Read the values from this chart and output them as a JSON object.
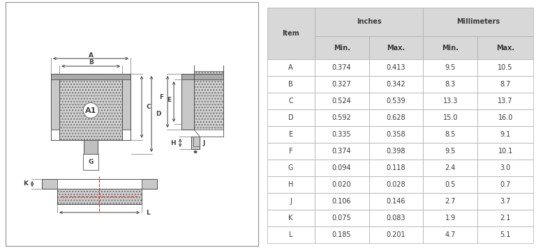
{
  "table_rows": [
    [
      "A",
      "0.374",
      "0.413",
      "9.5",
      "10.5"
    ],
    [
      "B",
      "0.327",
      "0.342",
      "8.3",
      "8.7"
    ],
    [
      "C",
      "0.524",
      "0.539",
      "13.3",
      "13.7"
    ],
    [
      "D",
      "0.592",
      "0.628",
      "15.0",
      "16.0"
    ],
    [
      "E",
      "0.335",
      "0.358",
      "8.5",
      "9.1"
    ],
    [
      "F",
      "0.374",
      "0.398",
      "9.5",
      "10.1"
    ],
    [
      "G",
      "0.094",
      "0.118",
      "2.4",
      "3.0"
    ],
    [
      "H",
      "0.020",
      "0.028",
      "0.5",
      "0.7"
    ],
    [
      "J",
      "0.106",
      "0.146",
      "2.7",
      "3.7"
    ],
    [
      "K",
      "0.075",
      "0.083",
      "1.9",
      "2.1"
    ],
    [
      "L",
      "0.185",
      "0.201",
      "4.7",
      "5.1"
    ]
  ],
  "hdr_bg": "#d8d8d8",
  "white": "#ffffff",
  "border": "#aaaaaa",
  "txt": "#3a3a3a",
  "fig_bg": "#ffffff",
  "draw_bg": "#f8f8f8",
  "hatch_fc": "#cccccc",
  "hatch_ec": "#888888",
  "line_c": "#505050",
  "dim_c": "#404040"
}
